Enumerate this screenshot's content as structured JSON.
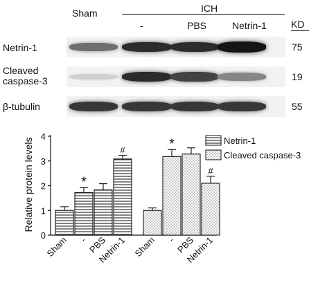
{
  "blot": {
    "header": {
      "sham": "Sham",
      "ich": "ICH",
      "minus": "-",
      "pbs": "PBS",
      "netrin": "Netrin-1",
      "kd": "KD"
    },
    "rows": [
      {
        "label": "Netrin-1",
        "label2": "",
        "kd": "75",
        "intensity": [
          0.55,
          0.85,
          0.85,
          0.95
        ]
      },
      {
        "label": "Cleaved",
        "label2": "caspase-3",
        "kd": "19",
        "intensity": [
          0.12,
          0.85,
          0.75,
          0.45
        ]
      },
      {
        "label": "β-tubulin",
        "label2": "",
        "kd": "55",
        "intensity": [
          0.8,
          0.8,
          0.8,
          0.8
        ]
      }
    ]
  },
  "chart_data": {
    "type": "bar",
    "ylabel": "Relative protein levels",
    "ylim": [
      0,
      4
    ],
    "yticks": [
      "0",
      "1",
      "2",
      "3",
      "4"
    ],
    "categories": [
      "Sham",
      "-",
      "PBS",
      "Netrin-1"
    ],
    "series": [
      {
        "name": "Netrin-1",
        "pattern": "hlines",
        "values": [
          1.0,
          1.72,
          1.83,
          3.08
        ],
        "errors": [
          0.15,
          0.2,
          0.25,
          0.15
        ],
        "marks": [
          "",
          "*",
          "",
          "#"
        ]
      },
      {
        "name": "Cleaved caspase-3",
        "pattern": "dots",
        "values": [
          1.0,
          3.18,
          3.28,
          2.1
        ],
        "errors": [
          0.1,
          0.28,
          0.25,
          0.28
        ],
        "marks": [
          "",
          "*",
          "",
          "#"
        ]
      }
    ],
    "legend_position": "top-right"
  }
}
